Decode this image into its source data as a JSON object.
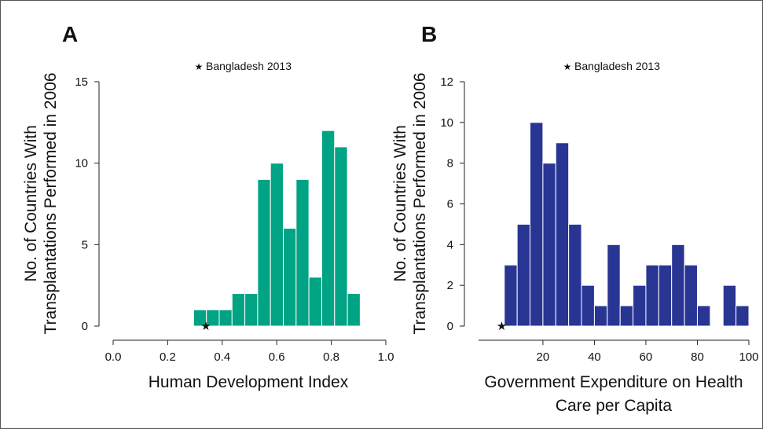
{
  "chart_data": [
    {
      "type": "histogram",
      "panel_label": "A",
      "ylabel": [
        "No. of Countries With",
        "Transplantations Performed in 2006"
      ],
      "xlabel": [
        "Human Development Index"
      ],
      "legend": "Bangladesh 2013",
      "marker": {
        "x": 0.34,
        "y": 0
      },
      "color": "#00a383",
      "bins": [
        0.295,
        0.342,
        0.389,
        0.436,
        0.483,
        0.53,
        0.577,
        0.624,
        0.671,
        0.718,
        0.765,
        0.812,
        0.859,
        0.906
      ],
      "values": [
        1,
        1,
        1,
        2,
        2,
        9,
        10,
        6,
        9,
        3,
        12,
        11,
        2
      ],
      "xlim": [
        0,
        1
      ],
      "xticks": [
        {
          "value": 0,
          "label": "0.0"
        },
        0.2,
        0.4,
        0.6,
        0.8,
        {
          "value": 1,
          "label": "1.0"
        }
      ],
      "ylim": [
        0,
        15
      ],
      "yticks": [
        0,
        5,
        10,
        15
      ]
    },
    {
      "type": "histogram",
      "panel_label": "B",
      "ylabel": [
        "No. of Countries With",
        "Transplantations Performed in 2006"
      ],
      "xlabel": [
        "Government Expenditure on Health",
        "Care per Capita"
      ],
      "legend": "Bangladesh 2013",
      "marker": {
        "x": 4,
        "y": 0
      },
      "color": "#283593",
      "bins": [
        5,
        10,
        15,
        20,
        25,
        30,
        35,
        40,
        45,
        50,
        55,
        60,
        65,
        70,
        75,
        80,
        85,
        90,
        95,
        100
      ],
      "values": [
        3,
        5,
        10,
        8,
        9,
        5,
        2,
        1,
        4,
        1,
        2,
        3,
        3,
        4,
        3,
        1,
        0,
        2,
        1
      ],
      "xlim": [
        -5,
        100
      ],
      "xticks": [
        20,
        40,
        60,
        80,
        100
      ],
      "ylim": [
        0,
        12
      ],
      "yticks": [
        0,
        2,
        4,
        6,
        8,
        10,
        12
      ]
    }
  ]
}
